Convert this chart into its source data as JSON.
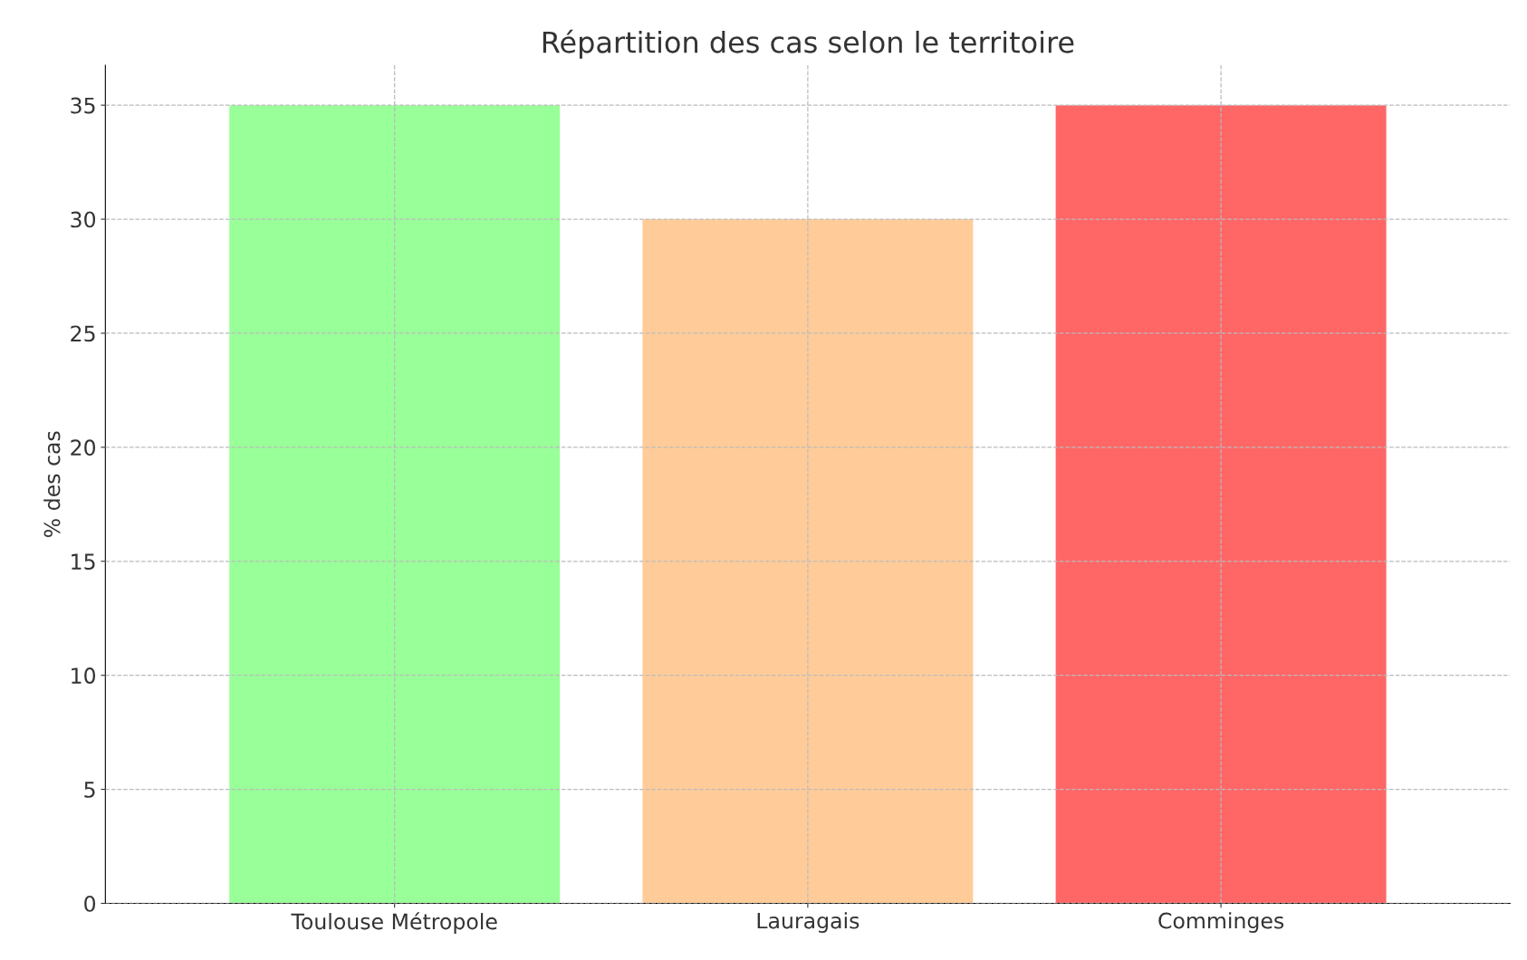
{
  "chart_data": {
    "type": "bar",
    "title": "Répartition des cas selon le territoire",
    "ylabel": "% des cas",
    "categories": [
      "Toulouse Métropole",
      "Lauragais",
      "Comminges"
    ],
    "values": [
      35,
      30,
      35
    ],
    "colors": [
      "#99ff99",
      "#ffcc99",
      "#ff6666"
    ],
    "ylim": [
      0,
      36.75
    ],
    "yticks": [
      0,
      5,
      10,
      15,
      20,
      25,
      30,
      35
    ],
    "grid": true
  }
}
